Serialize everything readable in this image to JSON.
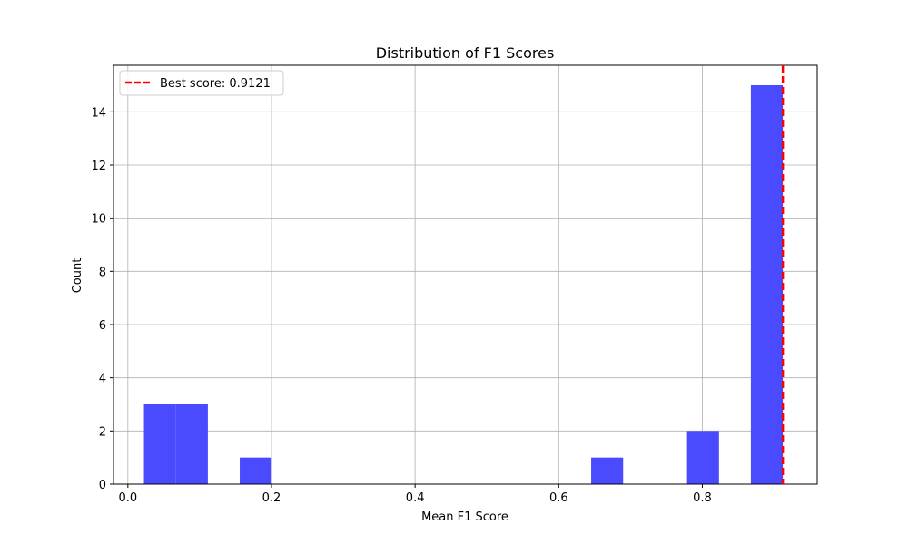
{
  "chart_data": {
    "type": "bar",
    "title": "Distribution of F1 Scores",
    "xlabel": "Mean F1 Score",
    "ylabel": "Count",
    "xlim": [
      -0.02,
      0.96
    ],
    "ylim": [
      0,
      15.75
    ],
    "xticks": [
      0.0,
      0.2,
      0.4,
      0.6,
      0.8
    ],
    "xtick_labels": [
      "0.0",
      "0.2",
      "0.4",
      "0.6",
      "0.8"
    ],
    "yticks": [
      0,
      2,
      4,
      6,
      8,
      10,
      12,
      14
    ],
    "ytick_labels": [
      "0",
      "2",
      "4",
      "6",
      "8",
      "10",
      "12",
      "14"
    ],
    "grid": true,
    "bins": [
      {
        "x0": 0.0224,
        "x1": 0.0669,
        "count": 3
      },
      {
        "x0": 0.0669,
        "x1": 0.1114,
        "count": 3
      },
      {
        "x0": 0.1558,
        "x1": 0.2003,
        "count": 1
      },
      {
        "x0": 0.6452,
        "x1": 0.6897,
        "count": 1
      },
      {
        "x0": 0.7787,
        "x1": 0.8232,
        "count": 2
      },
      {
        "x0": 0.8676,
        "x1": 0.9121,
        "count": 15
      }
    ],
    "bar_color": "#4a4aff",
    "best_score": 0.9121,
    "best_line_color": "#ff0000",
    "legend": {
      "position": "upper-left",
      "label": "Best score: 0.9121"
    }
  }
}
